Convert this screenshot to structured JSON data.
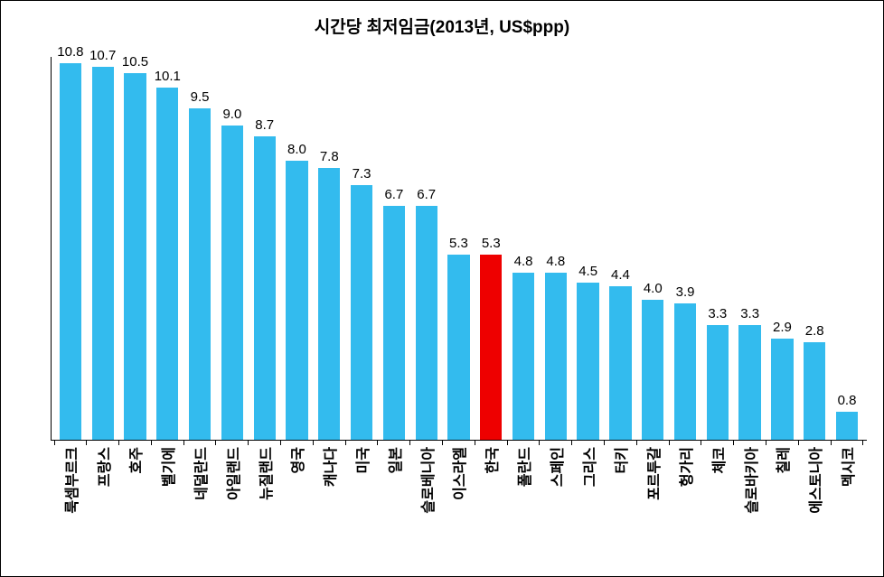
{
  "chart": {
    "type": "bar",
    "title": "시간당 최저임금(2013년, US$ppp)",
    "title_fontsize": 19,
    "title_fontweight": "bold",
    "background_color": "#ffffff",
    "axis_color": "#000000",
    "value_label_fontsize": 15,
    "value_label_color": "#000000",
    "x_label_fontsize": 16,
    "x_label_color": "#000000",
    "x_label_rotation": -90,
    "bar_width_ratio": 0.68,
    "y_max": 11.0,
    "y_min": 0,
    "data": [
      {
        "label": "룩셈부르크",
        "value": 10.8,
        "color": "#33bbee"
      },
      {
        "label": "프랑스",
        "value": 10.7,
        "color": "#33bbee"
      },
      {
        "label": "호주",
        "value": 10.5,
        "color": "#33bbee"
      },
      {
        "label": "벨기에",
        "value": 10.1,
        "color": "#33bbee"
      },
      {
        "label": "네덜란드",
        "value": 9.5,
        "color": "#33bbee"
      },
      {
        "label": "아일랜드",
        "value": 9.0,
        "color": "#33bbee"
      },
      {
        "label": "뉴질랜드",
        "value": 8.7,
        "color": "#33bbee"
      },
      {
        "label": "영국",
        "value": 8.0,
        "color": "#33bbee"
      },
      {
        "label": "캐나다",
        "value": 7.8,
        "color": "#33bbee"
      },
      {
        "label": "미국",
        "value": 7.3,
        "color": "#33bbee"
      },
      {
        "label": "일본",
        "value": 6.7,
        "color": "#33bbee"
      },
      {
        "label": "슬로베니아",
        "value": 6.7,
        "color": "#33bbee"
      },
      {
        "label": "이스라엘",
        "value": 5.3,
        "color": "#33bbee"
      },
      {
        "label": "한국",
        "value": 5.3,
        "color": "#ee0000"
      },
      {
        "label": "폴란드",
        "value": 4.8,
        "color": "#33bbee"
      },
      {
        "label": "스페인",
        "value": 4.8,
        "color": "#33bbee"
      },
      {
        "label": "그리스",
        "value": 4.5,
        "color": "#33bbee"
      },
      {
        "label": "터키",
        "value": 4.4,
        "color": "#33bbee"
      },
      {
        "label": "포르투갈",
        "value": 4.0,
        "color": "#33bbee"
      },
      {
        "label": "헝가리",
        "value": 3.9,
        "color": "#33bbee"
      },
      {
        "label": "체코",
        "value": 3.3,
        "color": "#33bbee"
      },
      {
        "label": "슬로바키아",
        "value": 3.3,
        "color": "#33bbee"
      },
      {
        "label": "칠레",
        "value": 2.9,
        "color": "#33bbee"
      },
      {
        "label": "에스토니아",
        "value": 2.8,
        "color": "#33bbee"
      },
      {
        "label": "멕시코",
        "value": 0.8,
        "color": "#33bbee"
      }
    ]
  }
}
